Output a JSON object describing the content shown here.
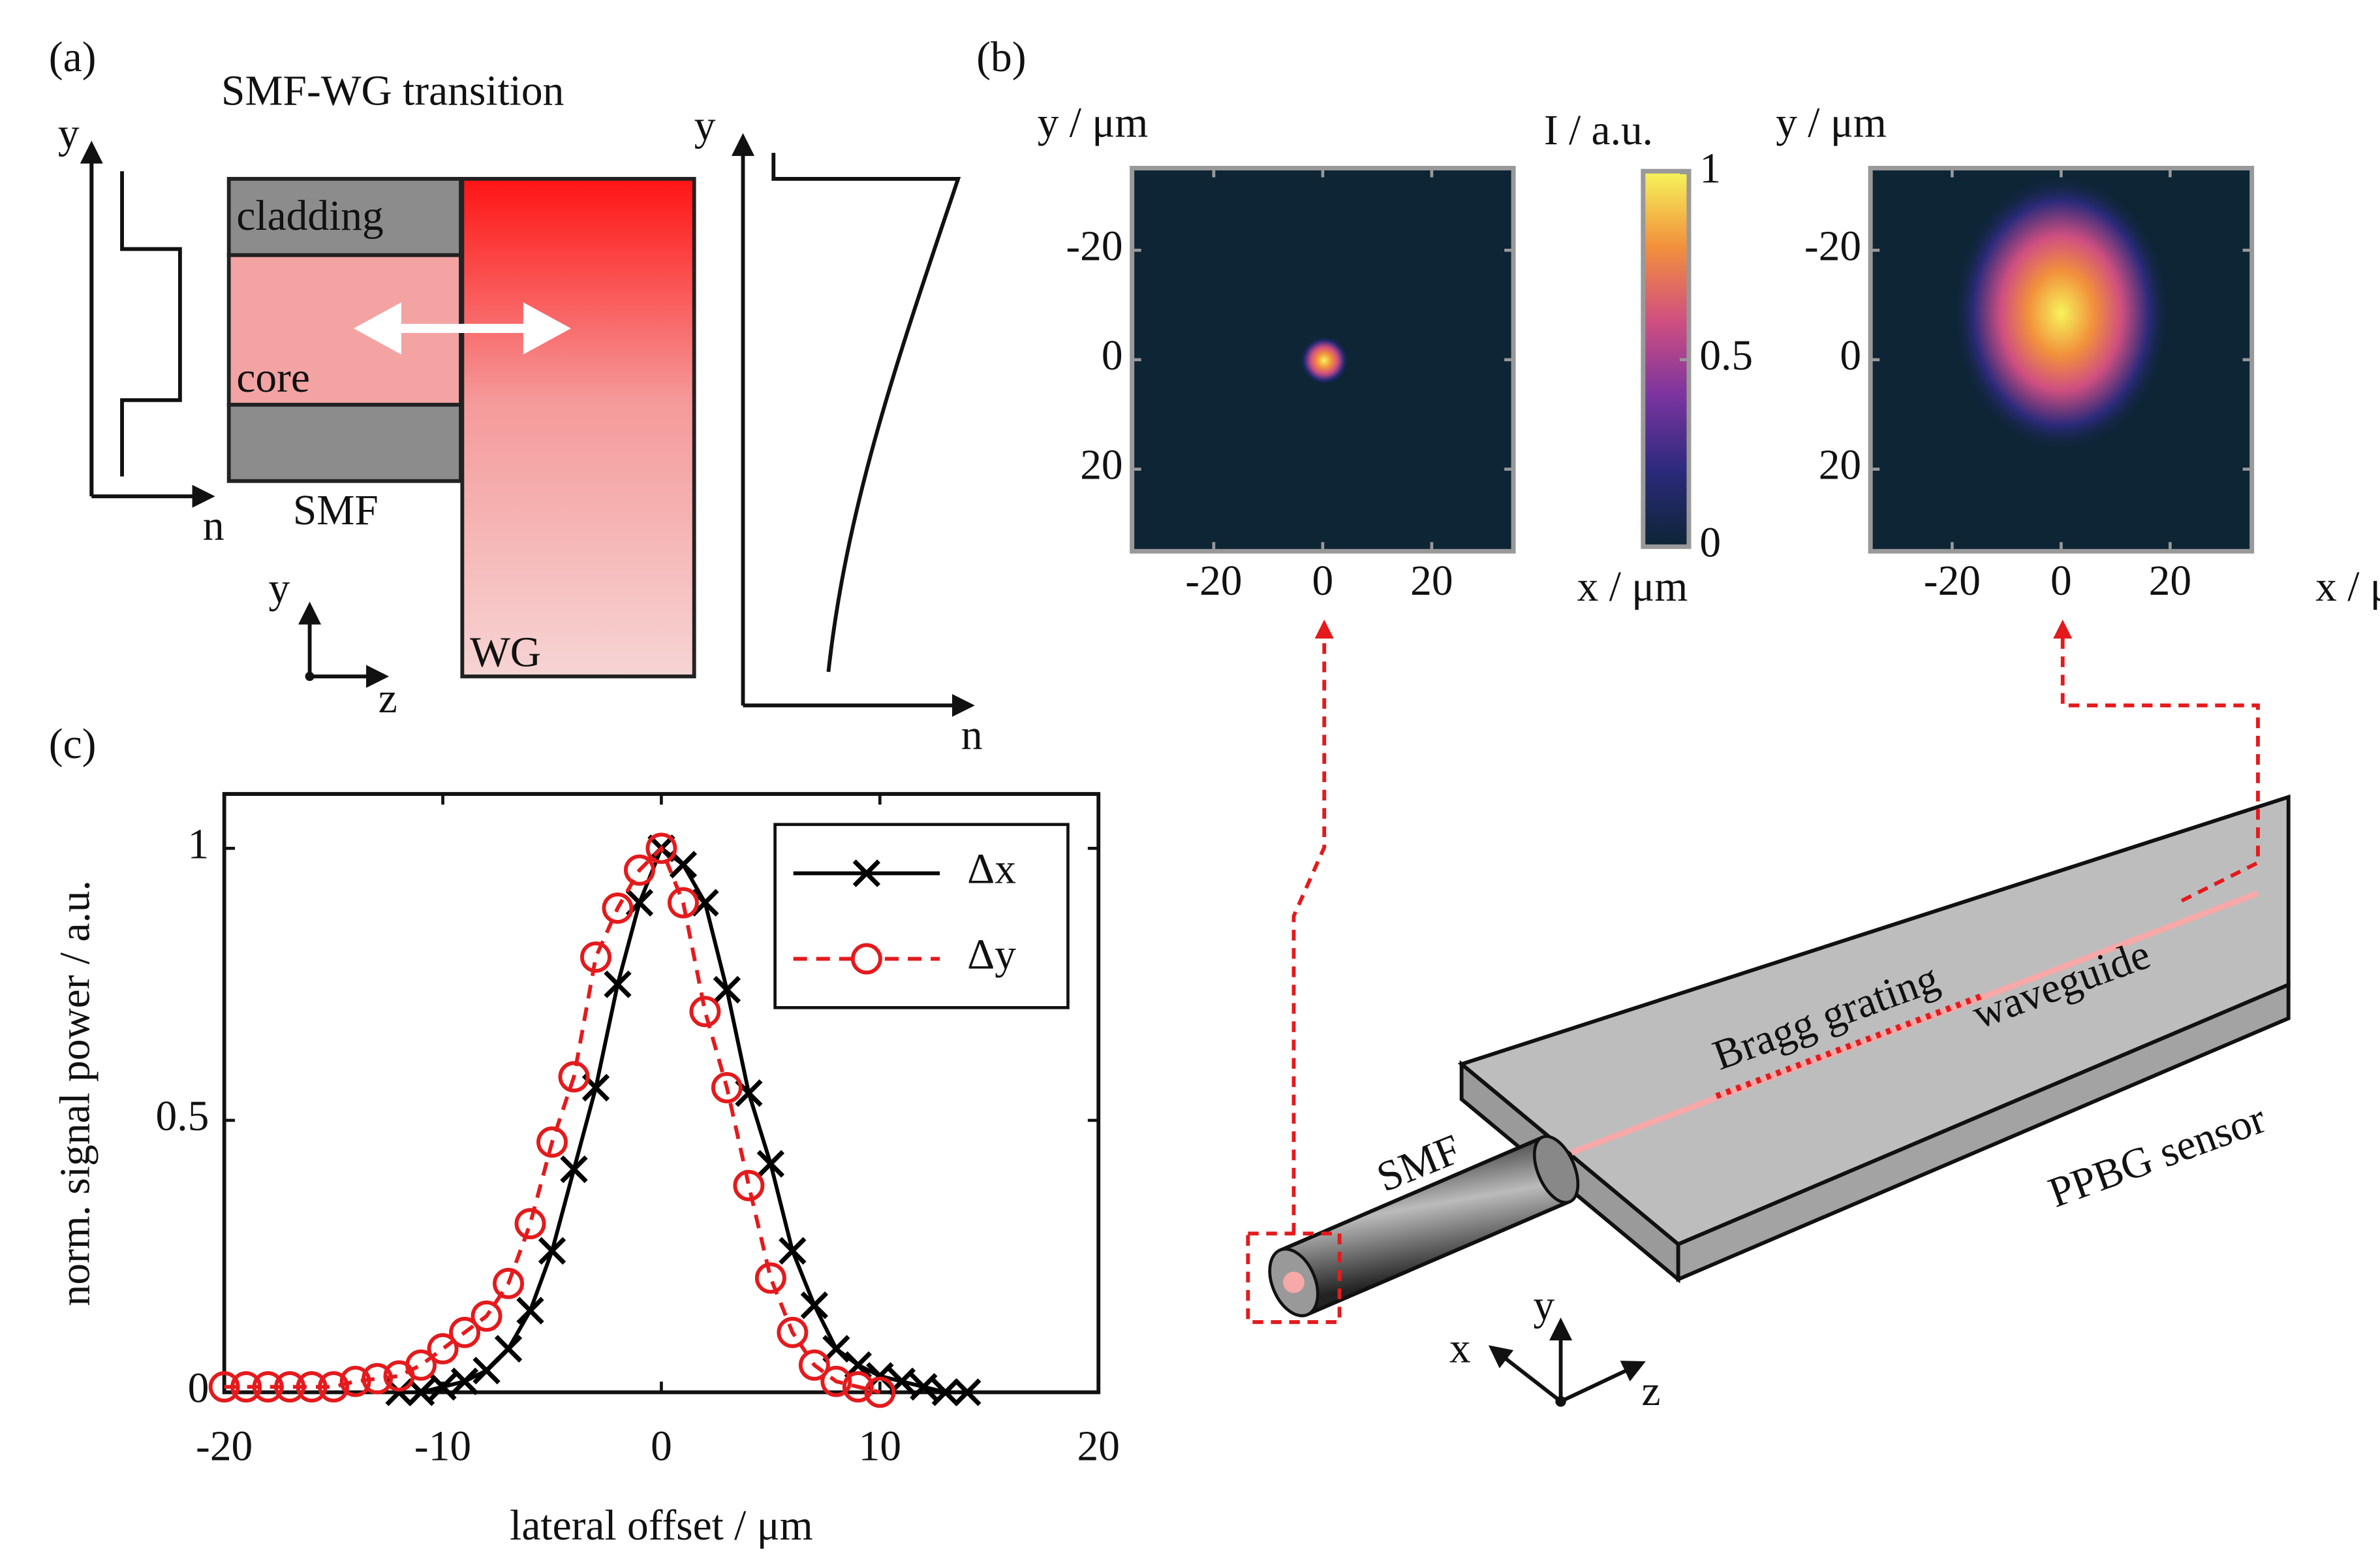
{
  "panels": {
    "a": "(a)",
    "b": "(b)",
    "c": "(c)"
  },
  "transition": {
    "title": "SMF-WG transition",
    "y_left": "y",
    "n_left": "n",
    "cladding": "cladding",
    "core": "core",
    "smf": "SMF",
    "wg": "WG",
    "coord_y": "y",
    "coord_z": "z",
    "y_right": "y",
    "n_right": "n"
  },
  "sensor": {
    "smf": "SMF",
    "bragg": "Bragg grating",
    "waveguide": "waveguide",
    "name": "PPBG sensor",
    "x": "x",
    "y": "y",
    "z": "z"
  },
  "chart_data": [
    {
      "type": "line",
      "xlabel": "lateral offset / μm",
      "ylabel": "norm. signal power / a.u.",
      "xlim": [
        -20,
        20
      ],
      "ylim": [
        0,
        1.1
      ],
      "xticks": [
        -20,
        -10,
        0,
        10,
        20
      ],
      "yticks": [
        0,
        0.5,
        1
      ],
      "legend": "upper right",
      "series": [
        {
          "name": "Δx",
          "color": "#000000",
          "marker": "x",
          "dash": false,
          "x": [
            -12,
            -11,
            -10,
            -9,
            -8,
            -7,
            -6,
            -5,
            -4,
            -3,
            -2,
            -1,
            0,
            1,
            2,
            3,
            4,
            5,
            6,
            7,
            8,
            9,
            10,
            11,
            12,
            13,
            14
          ],
          "values": [
            0,
            0,
            0.01,
            0.02,
            0.04,
            0.08,
            0.15,
            0.26,
            0.41,
            0.56,
            0.75,
            0.9,
            1,
            0.97,
            0.9,
            0.74,
            0.55,
            0.42,
            0.26,
            0.16,
            0.08,
            0.05,
            0.03,
            0.02,
            0.01,
            0,
            0
          ]
        },
        {
          "name": "Δy",
          "color": "#e41a1c",
          "marker": "o",
          "dash": true,
          "x": [
            -20,
            -19,
            -18,
            -17,
            -16,
            -15,
            -14,
            -13,
            -12,
            -11,
            -10,
            -9,
            -8,
            -7,
            -6,
            -5,
            -4,
            -3,
            -2,
            -1,
            0,
            1,
            2,
            3,
            4,
            5,
            6,
            7,
            8,
            9,
            10
          ],
          "values": [
            0.01,
            0.01,
            0.01,
            0.01,
            0.01,
            0.01,
            0.02,
            0.025,
            0.03,
            0.05,
            0.08,
            0.11,
            0.14,
            0.2,
            0.31,
            0.46,
            0.58,
            0.8,
            0.89,
            0.96,
            1,
            0.9,
            0.7,
            0.56,
            0.38,
            0.21,
            0.11,
            0.05,
            0.02,
            0.01,
            0
          ]
        }
      ]
    },
    {
      "type": "heatmap",
      "xlabel": "x / μm",
      "ylabel": "y / μm",
      "xlim": [
        -35,
        35
      ],
      "ylim": [
        35,
        -35
      ],
      "xticks": [
        -20,
        0,
        20
      ],
      "yticks": [
        -20,
        0,
        20
      ],
      "colorbar": {
        "label": "I / a.u.",
        "clim": [
          0,
          1
        ],
        "ticks": [
          0,
          0.5,
          1
        ]
      }
    },
    {
      "type": "heatmap",
      "xlabel": "x / μm",
      "ylabel": "y / μm",
      "xlim": [
        -35,
        35
      ],
      "ylim": [
        35,
        -35
      ],
      "xticks": [
        -20,
        0,
        20
      ],
      "yticks": [
        -20,
        0,
        20
      ]
    }
  ]
}
